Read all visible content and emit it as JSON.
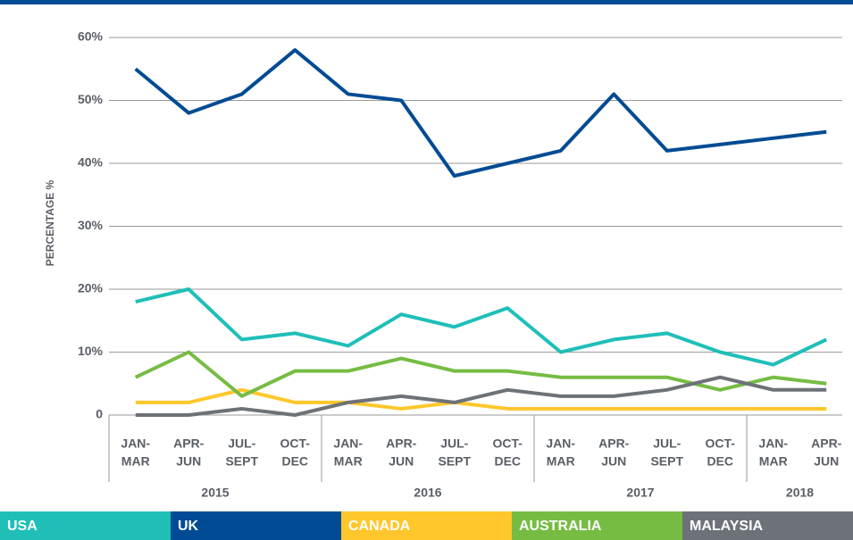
{
  "chart_data": {
    "type": "line",
    "y_label": "PERCENTAGE %",
    "categories": [
      {
        "label": [
          "JAN-",
          "MAR"
        ],
        "year": "2015"
      },
      {
        "label": [
          "APR-",
          "JUN"
        ],
        "year": "2015"
      },
      {
        "label": [
          "JUL-",
          "SEPT"
        ],
        "year": "2015"
      },
      {
        "label": [
          "OCT-",
          "DEC"
        ],
        "year": "2015"
      },
      {
        "label": [
          "JAN-",
          "MAR"
        ],
        "year": "2016"
      },
      {
        "label": [
          "APR-",
          "JUN"
        ],
        "year": "2016"
      },
      {
        "label": [
          "JUL-",
          "SEPT"
        ],
        "year": "2016"
      },
      {
        "label": [
          "OCT-",
          "DEC"
        ],
        "year": "2016"
      },
      {
        "label": [
          "JAN-",
          "MAR"
        ],
        "year": "2017"
      },
      {
        "label": [
          "APR-",
          "JUN"
        ],
        "year": "2017"
      },
      {
        "label": [
          "JUL-",
          "SEPT"
        ],
        "year": "2017"
      },
      {
        "label": [
          "OCT-",
          "DEC"
        ],
        "year": "2017"
      },
      {
        "label": [
          "JAN-",
          "MAR"
        ],
        "year": "2018"
      },
      {
        "label": [
          "APR-",
          "JUN"
        ],
        "year": "2018"
      }
    ],
    "series": [
      {
        "name": "USA",
        "color": "#1fbfb8",
        "values": [
          18,
          20,
          12,
          13,
          11,
          16,
          14,
          17,
          10,
          12,
          13,
          10,
          8,
          12
        ]
      },
      {
        "name": "UK",
        "color": "#004b93",
        "values": [
          55,
          48,
          51,
          58,
          51,
          50,
          38,
          40,
          42,
          51,
          42,
          43,
          44,
          45
        ]
      },
      {
        "name": "CANADA",
        "color": "#ffc72c",
        "values": [
          2,
          2,
          4,
          2,
          2,
          1,
          2,
          1,
          1,
          1,
          1,
          1,
          1,
          1
        ]
      },
      {
        "name": "AUSTRALIA",
        "color": "#76bc43",
        "values": [
          6,
          10,
          3,
          7,
          7,
          9,
          7,
          7,
          6,
          6,
          6,
          4,
          6,
          5
        ]
      },
      {
        "name": "MALAYSIA",
        "color": "#6d7278",
        "values": [
          0,
          0,
          1,
          0,
          2,
          3,
          2,
          4,
          3,
          3,
          4,
          6,
          4,
          4
        ]
      }
    ],
    "ylim": [
      0,
      60
    ],
    "yticks": [
      0,
      {
        "value": 10,
        "label": "10%"
      },
      {
        "value": 20,
        "label": "20%"
      },
      {
        "value": 30,
        "label": "30%"
      },
      {
        "value": 40,
        "label": "40%"
      },
      {
        "value": 50,
        "label": "50%"
      },
      {
        "value": 60,
        "label": "60%"
      }
    ],
    "grid": true
  }
}
